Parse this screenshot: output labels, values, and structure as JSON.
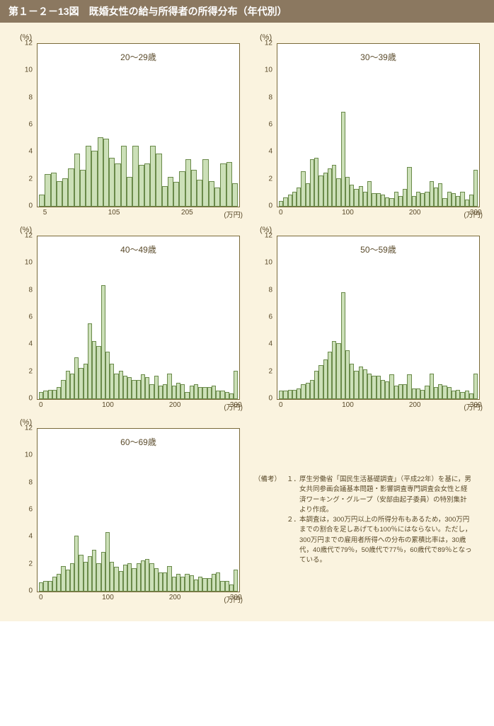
{
  "header_title": "第１－２－13図　既婚女性の給与所得者の所得分布（年代別）",
  "colors": {
    "page_bg": "#faf3df",
    "header_bg": "#8b7860",
    "header_fg": "#ffffff",
    "plot_bg": "#ffffff",
    "plot_border": "#7a6a3a",
    "bar_fill": "#cce0b8",
    "bar_border": "#6a8a4a",
    "text": "#5a4a2a"
  },
  "y_axis": {
    "label": "(%)",
    "min": 0,
    "max": 12,
    "step": 2,
    "fontsize": 10
  },
  "charts": [
    {
      "title": "20〜29歳",
      "x_ticks": [
        "5",
        "105",
        "205"
      ],
      "x_tick_positions": [
        4,
        38,
        74
      ],
      "x_unit": "(万円)",
      "values": [
        0.8,
        2.3,
        2.4,
        1.8,
        2.0,
        2.7,
        3.8,
        2.6,
        4.4,
        4.0,
        5.0,
        4.9,
        3.5,
        3.1,
        4.4,
        2.1,
        4.4,
        3.0,
        3.1,
        4.4,
        3.8,
        1.4,
        2.1,
        1.7,
        2.5,
        3.4,
        2.6,
        1.9,
        3.4,
        1.8,
        1.3,
        3.1,
        3.2,
        1.6
      ]
    },
    {
      "title": "30〜39歳",
      "x_ticks": [
        "0",
        "100",
        "200",
        "300"
      ],
      "x_tick_positions": [
        2,
        35,
        68,
        98
      ],
      "x_unit": "(万円)",
      "values": [
        0.3,
        0.6,
        0.8,
        1.0,
        1.3,
        2.5,
        1.6,
        3.4,
        3.5,
        2.2,
        2.4,
        2.7,
        3.0,
        2.0,
        6.9,
        2.1,
        1.5,
        1.2,
        1.4,
        1.0,
        1.8,
        0.9,
        0.9,
        0.8,
        0.6,
        0.5,
        1.0,
        0.7,
        1.2,
        2.8,
        0.7,
        1.0,
        0.9,
        1.0,
        1.8,
        1.3,
        1.6,
        0.5,
        1.0,
        0.9,
        0.7,
        1.0,
        0.4,
        0.8,
        2.6
      ]
    },
    {
      "title": "40〜49歳",
      "x_ticks": [
        "0",
        "100",
        "200",
        "300"
      ],
      "x_tick_positions": [
        2,
        35,
        68,
        98
      ],
      "x_unit": "(万円)",
      "values": [
        0.4,
        0.5,
        0.6,
        0.6,
        0.8,
        1.3,
        2.0,
        1.8,
        3.0,
        2.2,
        2.5,
        5.5,
        4.2,
        3.8,
        8.3,
        3.4,
        2.5,
        1.8,
        2.0,
        1.6,
        1.5,
        1.3,
        1.3,
        1.7,
        1.5,
        1.0,
        1.6,
        0.9,
        1.0,
        1.8,
        0.9,
        1.1,
        1.0,
        0.4,
        0.9,
        1.0,
        0.8,
        0.8,
        0.8,
        0.9,
        0.5,
        0.5,
        0.4,
        0.3,
        2.0
      ]
    },
    {
      "title": "50〜59歳",
      "x_ticks": [
        "0",
        "100",
        "200",
        "300"
      ],
      "x_tick_positions": [
        2,
        35,
        68,
        98
      ],
      "x_unit": "(万円)",
      "values": [
        0.5,
        0.5,
        0.6,
        0.6,
        0.7,
        1.0,
        1.1,
        1.3,
        2.0,
        2.4,
        2.8,
        3.4,
        4.2,
        4.0,
        7.8,
        3.5,
        2.5,
        2.0,
        2.3,
        2.1,
        1.8,
        1.6,
        1.6,
        1.3,
        1.2,
        1.7,
        0.9,
        1.0,
        1.0,
        1.7,
        0.7,
        0.7,
        0.6,
        0.9,
        1.8,
        0.8,
        1.0,
        0.9,
        0.8,
        0.5,
        0.6,
        0.4,
        0.5,
        0.3,
        1.8
      ]
    },
    {
      "title": "60〜69歳",
      "x_ticks": [
        "0",
        "100",
        "200",
        "300"
      ],
      "x_tick_positions": [
        2,
        35,
        68,
        98
      ],
      "x_unit": "(万円)",
      "values": [
        0.6,
        0.7,
        0.7,
        1.0,
        1.2,
        1.8,
        1.5,
        2.0,
        4.0,
        2.6,
        2.1,
        2.5,
        3.0,
        2.0,
        2.8,
        4.3,
        2.1,
        1.7,
        1.4,
        1.9,
        2.0,
        1.6,
        2.0,
        2.2,
        2.3,
        2.0,
        1.6,
        1.3,
        1.3,
        1.8,
        1.0,
        1.2,
        1.0,
        1.2,
        1.1,
        0.8,
        1.0,
        0.9,
        0.9,
        1.2,
        1.3,
        0.7,
        0.7,
        0.4,
        1.5
      ]
    }
  ],
  "notes": {
    "label": "（備考）",
    "items": [
      {
        "num": "１．",
        "text": "厚生労働省「国民生活基礎調査」（平成22年）を基に，男女共同参画会議基本問題・影響調査専門調査会女性と経済ワーキング・グループ（安部由起子委員）の特別集計より作成。"
      },
      {
        "num": "２．",
        "text": "本調査は，300万円以上の所得分布もあるため，300万円までの割合を足しあげても100％にはならない。ただし，300万円までの雇用者所得への分布の累積比率は，30歳代，40歳代で79％，50歳代で77％，60歳代で89％となっている。"
      }
    ]
  }
}
